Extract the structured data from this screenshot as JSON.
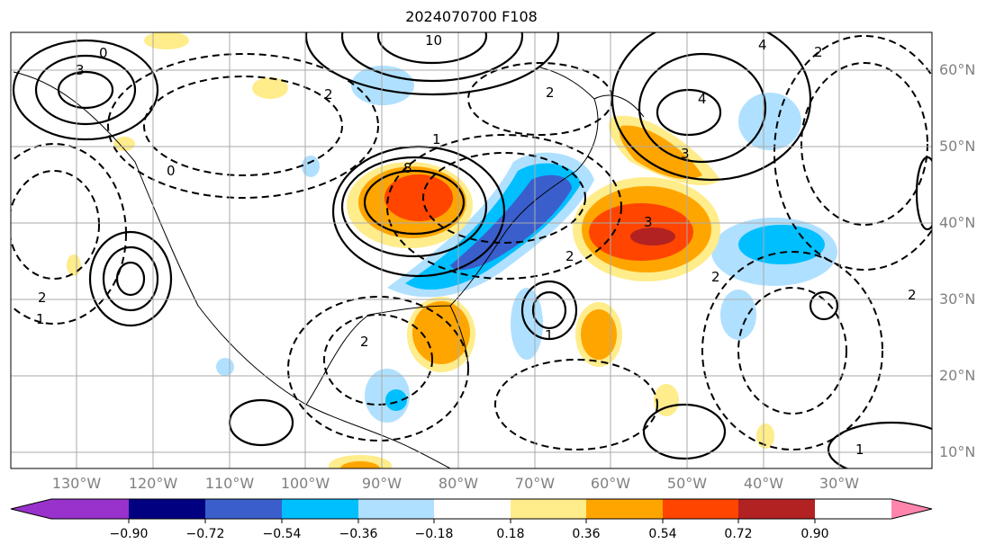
{
  "title": "2024070700 F108",
  "lon_labels": [
    "130°W",
    "120°W",
    "110°W",
    "100°W",
    "90°W",
    "80°W",
    "70°W",
    "60°W",
    "50°W",
    "40°W",
    "30°W"
  ],
  "lat_labels": [
    "60°N",
    "50°N",
    "40°N",
    "30°N",
    "20°N",
    "10°N"
  ],
  "colorbar": {
    "ticks": [
      "−0.90",
      "−0.72",
      "−0.54",
      "−0.36",
      "−0.18",
      "0.18",
      "0.36",
      "0.54",
      "0.72",
      "0.90"
    ],
    "colors": [
      "#9932cc",
      "#000080",
      "#3a5fcd",
      "#00bfff",
      "#b0e0ff",
      "#ffffff",
      "#ffec8b",
      "#ffa500",
      "#ff4500",
      "#b22222",
      "#ff85ad"
    ]
  },
  "contour_labels": [
    "3",
    "0",
    "2",
    "8",
    "10",
    "4",
    "2",
    "3",
    "4",
    "2",
    "1",
    "0",
    "3",
    "2",
    "2",
    "1",
    "2",
    "1",
    "2",
    "2",
    "1"
  ]
}
